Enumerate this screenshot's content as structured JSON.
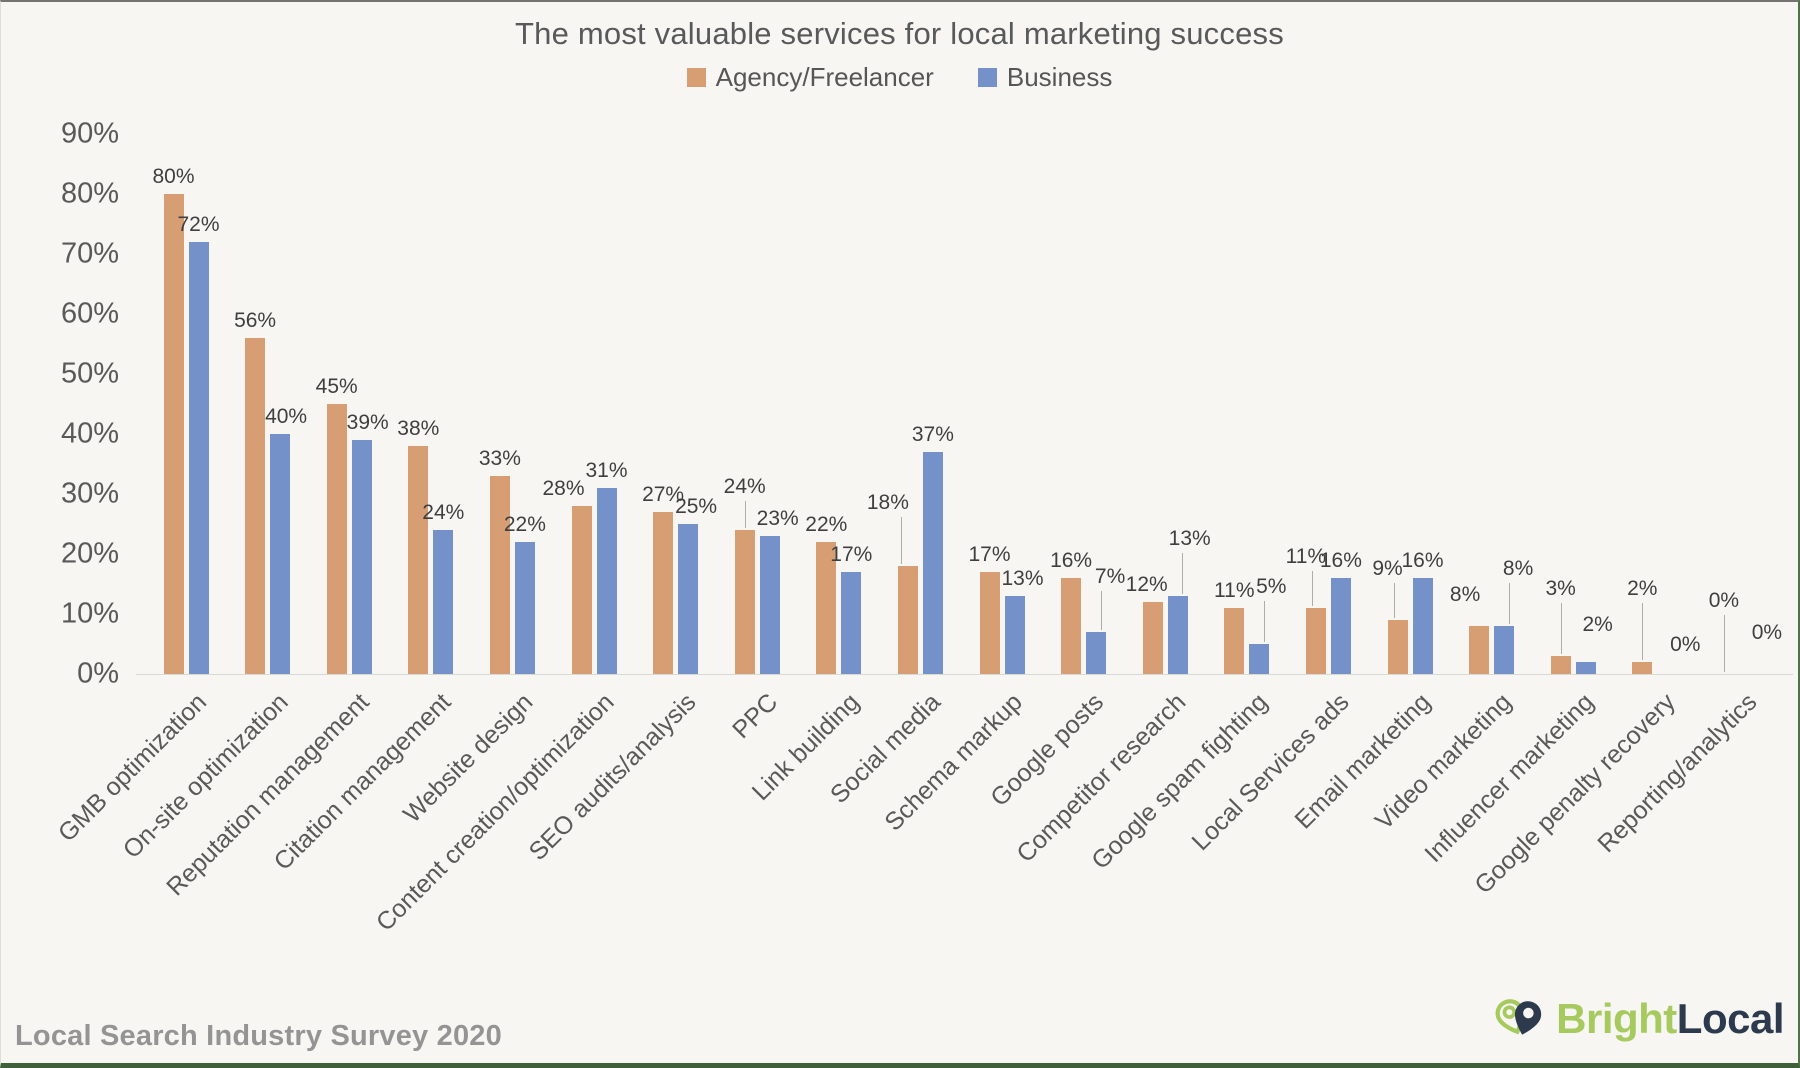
{
  "title": "The most valuable services for local marketing success",
  "legend": [
    {
      "label": "Agency/Freelancer",
      "color": "#d79e74"
    },
    {
      "label": "Business",
      "color": "#7591c9"
    }
  ],
  "footer": {
    "source": "Local Search Industry Survey 2020"
  },
  "logo": {
    "bright": "Bright",
    "local": "Local",
    "green": "#a6ca5d",
    "navy": "#2d3a4e"
  },
  "chart_data": {
    "type": "bar",
    "title": "The most valuable services for local marketing success",
    "categories": [
      "GMB optimization",
      "On-site optimization",
      "Reputation management",
      "Citation management",
      "Website design",
      "Content creation/optimization",
      "SEO audits/analysis",
      "PPC",
      "Link building",
      "Social media",
      "Schema markup",
      "Google posts",
      "Competitor research",
      "Google spam fighting",
      "Local Services ads",
      "Email marketing",
      "Video marketing",
      "Influencer marketing",
      "Google penalty recovery",
      "Reporting/analytics"
    ],
    "series": [
      {
        "name": "Agency/Freelancer",
        "color": "#d79e74",
        "values": [
          80,
          56,
          45,
          38,
          33,
          28,
          27,
          24,
          22,
          18,
          17,
          16,
          12,
          11,
          11,
          9,
          8,
          3,
          2,
          0
        ]
      },
      {
        "name": "Business",
        "color": "#7591c9",
        "values": [
          72,
          40,
          39,
          24,
          22,
          31,
          25,
          23,
          17,
          37,
          13,
          7,
          13,
          5,
          16,
          16,
          8,
          2,
          0,
          0
        ]
      }
    ],
    "xlabel": "",
    "ylabel": "",
    "ylim": [
      0,
      90
    ],
    "ytick_step": 10,
    "ytick_format": "percent",
    "grid": false,
    "legend_position": "top",
    "data_labels": true,
    "label_hints": {
      "1-1": {
        "dx": 6
      },
      "2-1": {
        "dx": 6
      },
      "5-0": {
        "dx": -18
      },
      "6-1": {
        "dx": 8
      },
      "7-0": {
        "dy": -26,
        "leader": true
      },
      "7-1": {
        "dx": 8
      },
      "9-0": {
        "dx": -20,
        "dy": -46,
        "leader": true
      },
      "10-1": {
        "dx": 8
      },
      "11-1": {
        "dx": 14,
        "dy": -38,
        "leader": true
      },
      "12-0": {
        "dx": -6
      },
      "12-1": {
        "dx": 12,
        "dy": -40,
        "leader": true
      },
      "13-1": {
        "dx": 12,
        "dy": -40,
        "leader": true
      },
      "14-0": {
        "dx": -10,
        "dy": -34,
        "leader": true
      },
      "15-0": {
        "dx": -10,
        "dy": -34,
        "leader": true
      },
      "16-0": {
        "dx": -14,
        "dy": -14
      },
      "16-1": {
        "dx": 14,
        "dy": -40,
        "leader": true
      },
      "17-0": {
        "dy": -50,
        "leader": true
      },
      "17-1": {
        "dx": 12,
        "dy": -20
      },
      "18-0": {
        "dy": -56,
        "leader": true
      },
      "18-1": {
        "dx": 18,
        "dy": -12
      },
      "19-0": {
        "dy": -56,
        "leader": true
      },
      "19-1": {
        "dx": 18,
        "dy": -24
      }
    }
  }
}
